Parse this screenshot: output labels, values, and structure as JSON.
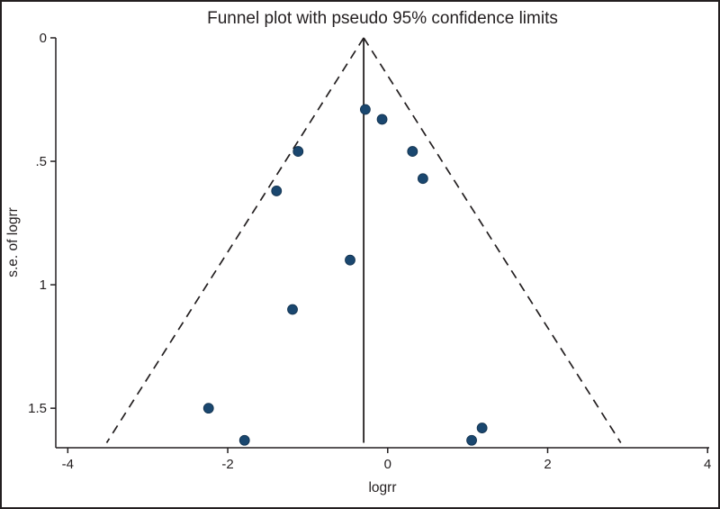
{
  "figure": {
    "background": "#ffffff",
    "border_color": "#231f20"
  },
  "chart_data": {
    "type": "scatter",
    "title": "Funnel plot with pseudo 95% confidence limits",
    "xlabel": "logrr",
    "ylabel": "s.e. of logrr",
    "xlim": [
      -4.15,
      4.02
    ],
    "ylim": [
      0,
      1.66
    ],
    "y_axis_orientation": "se increases downward (0 at top)",
    "xticks": [
      -4,
      -2,
      0,
      2,
      4
    ],
    "xtick_labels": [
      "-4",
      "-2",
      "0",
      "2",
      "4"
    ],
    "yticks": [
      0,
      0.5,
      1,
      1.5
    ],
    "ytick_labels": [
      "0",
      ".5",
      "1",
      "1.5"
    ],
    "pooled_estimate_x": -0.3,
    "pseudo_ci": {
      "multiplier": 1.96,
      "se_max": 1.64,
      "style": "dashed"
    },
    "points": [
      {
        "x": -0.28,
        "se": 0.29
      },
      {
        "x": -0.07,
        "se": 0.33
      },
      {
        "x": -1.12,
        "se": 0.46
      },
      {
        "x": 0.31,
        "se": 0.46
      },
      {
        "x": 0.44,
        "se": 0.57
      },
      {
        "x": -1.39,
        "se": 0.62
      },
      {
        "x": -0.47,
        "se": 0.9
      },
      {
        "x": -1.19,
        "se": 1.1
      },
      {
        "x": -2.24,
        "se": 1.5
      },
      {
        "x": -1.79,
        "se": 1.63
      },
      {
        "x": 1.05,
        "se": 1.63
      },
      {
        "x": 1.18,
        "se": 1.58
      }
    ],
    "colors": {
      "marker": "#1a476f",
      "axis": "#231f20",
      "ci_line": "#231f20",
      "center_line": "#231f20"
    },
    "grid": false,
    "legend": "none"
  }
}
